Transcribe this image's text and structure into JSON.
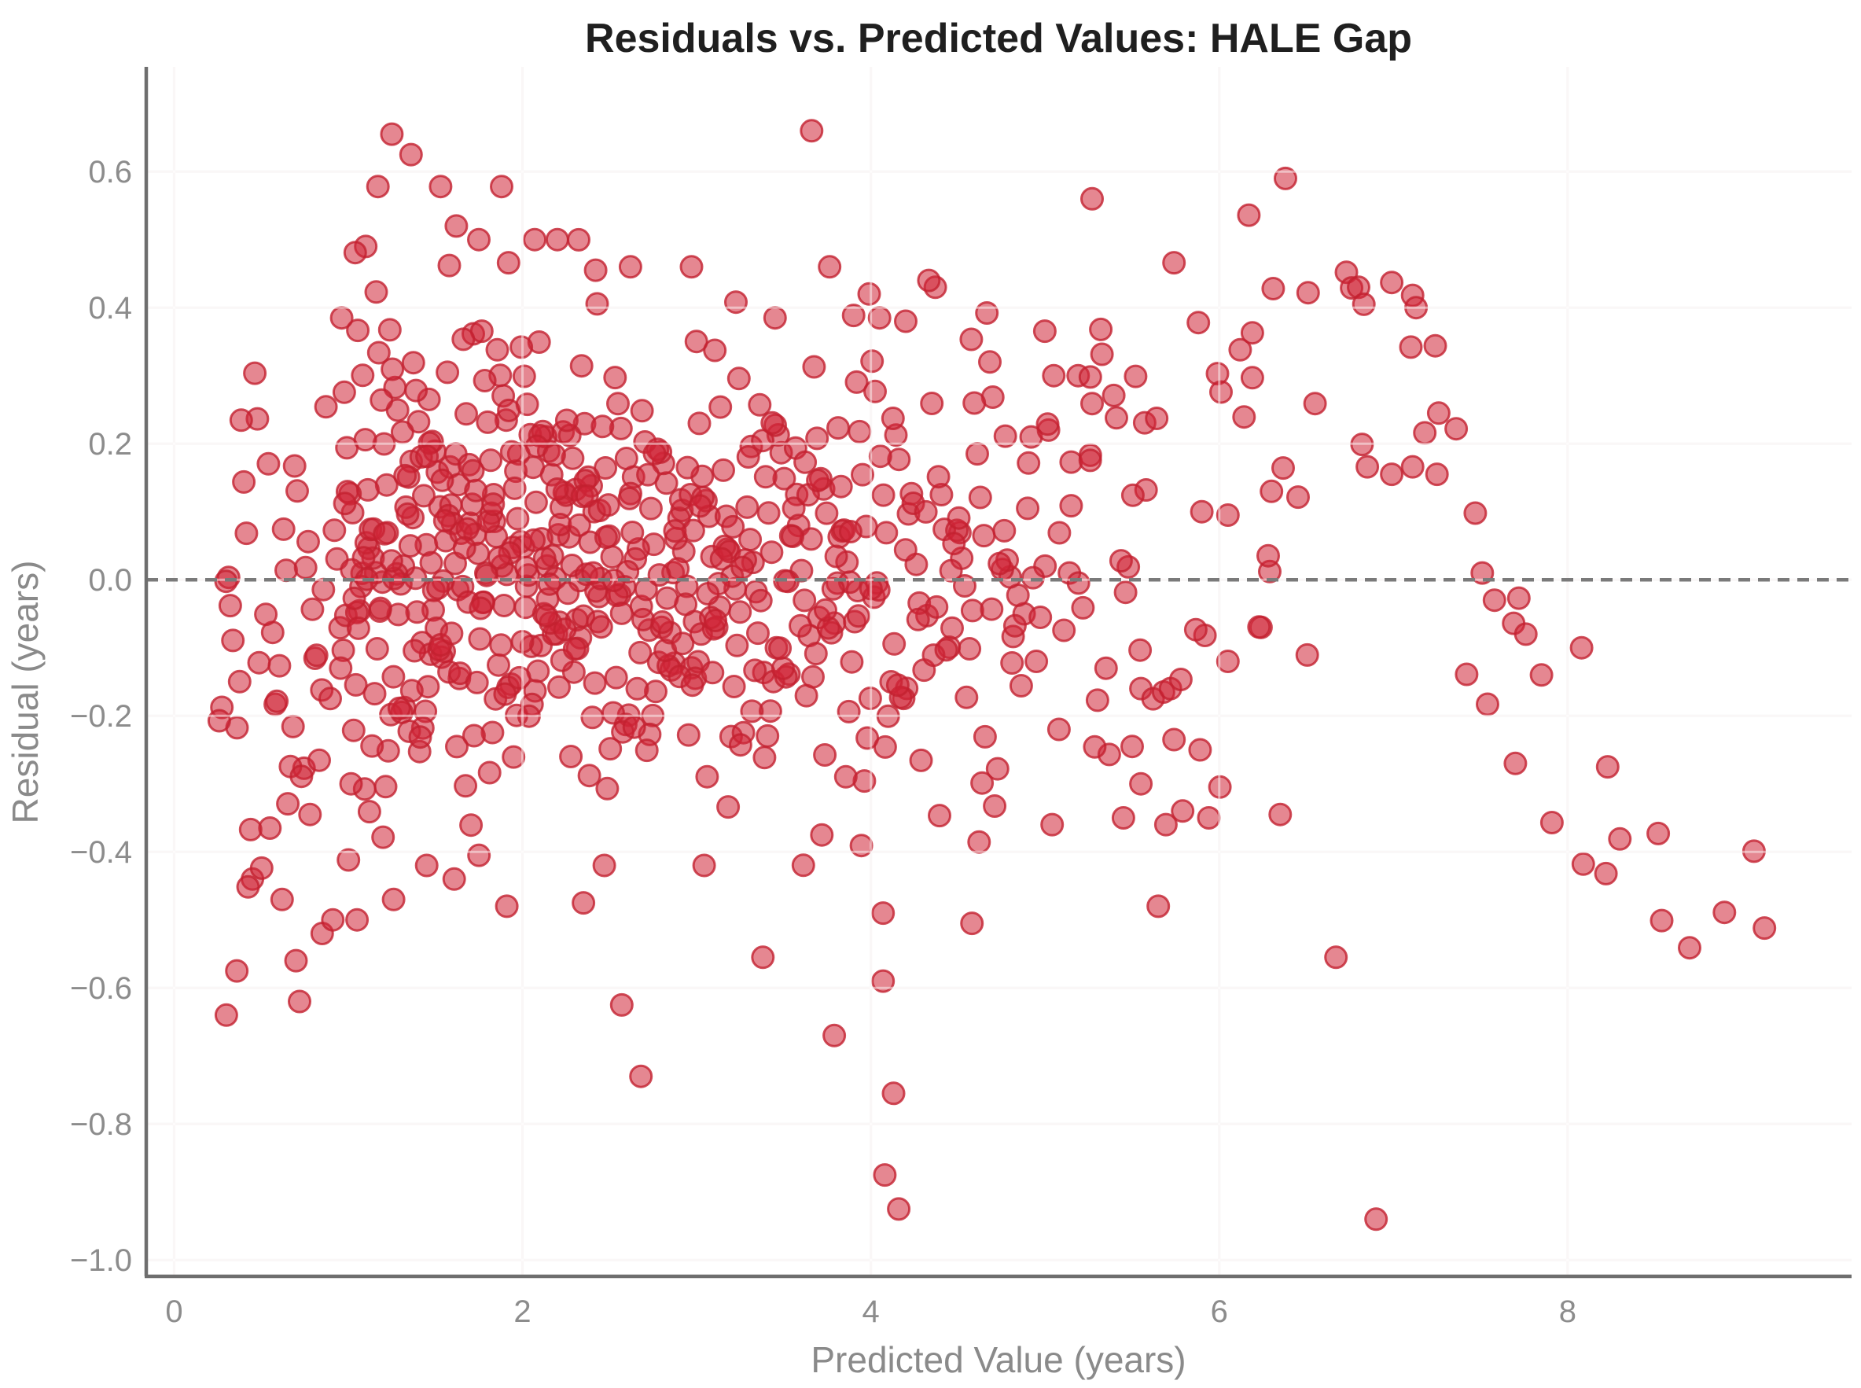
{
  "chart_data": {
    "type": "scatter",
    "title": "Residuals vs. Predicted Values: HALE Gap",
    "xlabel": "Predicted Value (years)",
    "ylabel": "Residual (years)",
    "xlim": [
      -0.16,
      9.63
    ],
    "ylim": [
      -1.024,
      0.754
    ],
    "grid": true,
    "legend": "none",
    "xticks": [
      {
        "v": 0,
        "label": "0"
      },
      {
        "v": 2,
        "label": "2"
      },
      {
        "v": 4,
        "label": "4"
      },
      {
        "v": 6,
        "label": "6"
      },
      {
        "v": 8,
        "label": "8"
      }
    ],
    "yticks": [
      {
        "v": 0.6,
        "label": "0.6"
      },
      {
        "v": 0.4,
        "label": "0.4"
      },
      {
        "v": 0.2,
        "label": "0.2"
      },
      {
        "v": 0.0,
        "label": "0.0"
      },
      {
        "v": -0.2,
        "label": "−0.2"
      },
      {
        "v": -0.4,
        "label": "−0.4"
      },
      {
        "v": -0.6,
        "label": "−0.6"
      },
      {
        "v": -0.8,
        "label": "−0.8"
      },
      {
        "v": -1.0,
        "label": "−1.0"
      }
    ],
    "zero_line": {
      "y": 0,
      "color": "#7a7a7a",
      "dash": [
        15,
        10
      ],
      "width": 4.5
    },
    "marker": {
      "radius": 13.5,
      "fill": "#cf2436",
      "fill_opacity": 0.55,
      "stroke": "#c32030",
      "stroke_opacity": 0.8,
      "stroke_width": 3
    },
    "colors": {
      "background": "#ffffff",
      "spine": "#6e6e6e",
      "grid": "#f4eeee",
      "grid_overlay": "rgba(255,255,255,0.5)",
      "title": "#1f1f1f",
      "axis_label": "#8a8a8a",
      "tick_label": "#8c8c8c"
    },
    "points": [
      [
        0.3,
        -0.64
      ],
      [
        0.36,
        -0.575
      ],
      [
        0.45,
        -0.44
      ],
      [
        0.55,
        -0.365
      ],
      [
        0.62,
        -0.47
      ],
      [
        0.7,
        -0.56
      ],
      [
        0.72,
        -0.62
      ],
      [
        0.78,
        -0.345
      ],
      [
        0.85,
        -0.52
      ],
      [
        1.05,
        -0.5
      ],
      [
        1.26,
        -0.47
      ],
      [
        1.45,
        -0.42
      ],
      [
        1.75,
        -0.405
      ],
      [
        1.91,
        -0.48
      ],
      [
        2.35,
        -0.475
      ],
      [
        2.57,
        -0.625
      ],
      [
        2.68,
        -0.73
      ],
      [
        3.38,
        -0.555
      ],
      [
        3.79,
        -0.67
      ],
      [
        4.07,
        -0.49
      ],
      [
        4.07,
        -0.59
      ],
      [
        4.13,
        -0.755
      ],
      [
        4.08,
        -0.875
      ],
      [
        4.16,
        -0.925
      ],
      [
        4.58,
        -0.505
      ],
      [
        1.1,
        0.49
      ],
      [
        1.17,
        0.578
      ],
      [
        1.25,
        0.655
      ],
      [
        1.36,
        0.625
      ],
      [
        1.53,
        0.578
      ],
      [
        1.58,
        0.462
      ],
      [
        1.62,
        0.52
      ],
      [
        1.88,
        0.578
      ],
      [
        1.92,
        0.466
      ],
      [
        2.07,
        0.5
      ],
      [
        2.2,
        0.5
      ],
      [
        2.42,
        0.455
      ],
      [
        2.62,
        0.46
      ],
      [
        2.97,
        0.46
      ],
      [
        3.45,
        0.385
      ],
      [
        3.66,
        0.66
      ],
      [
        4.05,
        0.385
      ],
      [
        4.2,
        0.38
      ],
      [
        4.37,
        0.43
      ],
      [
        4.88,
        -0.05
      ],
      [
        4.9,
        0.105
      ],
      [
        4.92,
        0.21
      ],
      [
        4.95,
        -0.12
      ],
      [
        5.0,
        0.02
      ],
      [
        5.02,
        0.22
      ],
      [
        5.05,
        0.3
      ],
      [
        5.08,
        -0.22
      ],
      [
        5.14,
        0.01
      ],
      [
        5.15,
        0.173
      ],
      [
        5.19,
        0.3
      ],
      [
        5.26,
        0.183
      ],
      [
        5.26,
        0.298
      ],
      [
        5.27,
        0.259
      ],
      [
        5.27,
        0.56
      ],
      [
        5.32,
        0.368
      ],
      [
        5.35,
        -0.13
      ],
      [
        5.41,
        0.238
      ],
      [
        5.45,
        -0.35
      ],
      [
        5.5,
        -0.245
      ],
      [
        5.52,
        0.299
      ],
      [
        5.55,
        -0.16
      ],
      [
        5.55,
        -0.3
      ],
      [
        5.58,
        0.132
      ],
      [
        5.62,
        -0.175
      ],
      [
        5.65,
        -0.48
      ],
      [
        5.68,
        -0.165
      ],
      [
        5.72,
        -0.16
      ],
      [
        5.74,
        -0.235
      ],
      [
        5.74,
        0.466
      ],
      [
        5.79,
        -0.34
      ],
      [
        5.88,
        0.378
      ],
      [
        5.89,
        -0.25
      ],
      [
        5.9,
        0.1
      ],
      [
        5.94,
        -0.35
      ],
      [
        5.99,
        0.303
      ],
      [
        6.01,
        0.276
      ],
      [
        6.05,
        -0.12
      ],
      [
        6.05,
        0.095
      ],
      [
        6.12,
        0.338
      ],
      [
        6.17,
        0.536
      ],
      [
        6.19,
        0.297
      ],
      [
        6.19,
        0.363
      ],
      [
        6.24,
        -0.07
      ],
      [
        6.29,
        0.012
      ],
      [
        6.3,
        0.13
      ],
      [
        6.31,
        0.428
      ],
      [
        6.35,
        -0.345
      ],
      [
        6.38,
        0.59
      ],
      [
        6.51,
        0.422
      ],
      [
        6.55,
        0.259
      ],
      [
        6.67,
        -0.555
      ],
      [
        6.73,
        0.452
      ],
      [
        6.76,
        0.429
      ],
      [
        6.8,
        0.43
      ],
      [
        6.82,
        0.199
      ],
      [
        6.83,
        0.405
      ],
      [
        6.85,
        0.166
      ],
      [
        6.9,
        -0.94
      ],
      [
        6.99,
        0.155
      ],
      [
        6.99,
        0.437
      ],
      [
        7.1,
        0.342
      ],
      [
        7.11,
        0.166
      ],
      [
        7.11,
        0.418
      ],
      [
        7.13,
        0.4
      ],
      [
        7.18,
        0.216
      ],
      [
        7.24,
        0.344
      ],
      [
        7.25,
        0.155
      ],
      [
        7.26,
        0.245
      ],
      [
        7.36,
        0.222
      ],
      [
        7.42,
        -0.139
      ],
      [
        7.47,
        0.098
      ],
      [
        7.51,
        0.01
      ],
      [
        7.54,
        -0.183
      ],
      [
        7.58,
        -0.03
      ],
      [
        7.69,
        -0.064
      ],
      [
        7.7,
        -0.27
      ],
      [
        7.72,
        -0.027
      ],
      [
        7.76,
        -0.08
      ],
      [
        7.85,
        -0.14
      ],
      [
        7.91,
        -0.357
      ],
      [
        8.08,
        -0.1
      ],
      [
        8.09,
        -0.418
      ],
      [
        8.22,
        -0.432
      ],
      [
        8.23,
        -0.275
      ],
      [
        8.3,
        -0.381
      ],
      [
        8.52,
        -0.373
      ],
      [
        8.54,
        -0.501
      ],
      [
        8.7,
        -0.541
      ],
      [
        8.9,
        -0.489
      ],
      [
        9.07,
        -0.399
      ],
      [
        9.13,
        -0.512
      ]
    ],
    "cloud_bands": [
      {
        "x_min": 0.25,
        "x_max": 0.95,
        "n": 45,
        "y_mean": -0.08,
        "y_sd": 0.2,
        "y_clip": [
          -0.5,
          0.42
        ]
      },
      {
        "x_min": 0.95,
        "x_max": 1.65,
        "n": 130,
        "y_mean": 0.02,
        "y_sd": 0.19,
        "y_clip": [
          -0.44,
          0.5
        ]
      },
      {
        "x_min": 1.65,
        "x_max": 2.45,
        "n": 150,
        "y_mean": 0.045,
        "y_sd": 0.165,
        "y_clip": [
          -0.4,
          0.5
        ]
      },
      {
        "x_min": 2.45,
        "x_max": 3.25,
        "n": 120,
        "y_mean": 0.005,
        "y_sd": 0.165,
        "y_clip": [
          -0.42,
          0.48
        ]
      },
      {
        "x_min": 3.25,
        "x_max": 4.05,
        "n": 100,
        "y_mean": 0.015,
        "y_sd": 0.175,
        "y_clip": [
          -0.44,
          0.46
        ]
      },
      {
        "x_min": 4.05,
        "x_max": 4.85,
        "n": 70,
        "y_mean": 0.005,
        "y_sd": 0.185,
        "y_clip": [
          -0.4,
          0.44
        ]
      },
      {
        "x_min": 4.85,
        "x_max": 5.6,
        "n": 24,
        "y_mean": 0.03,
        "y_sd": 0.185,
        "y_clip": [
          -0.36,
          0.4
        ]
      },
      {
        "x_min": 5.6,
        "x_max": 6.55,
        "n": 12,
        "y_mean": -0.04,
        "y_sd": 0.2,
        "y_clip": [
          -0.36,
          0.36
        ]
      }
    ]
  }
}
